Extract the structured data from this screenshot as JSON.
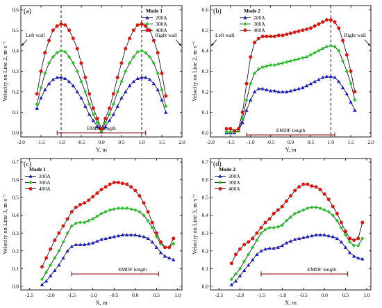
{
  "colors": {
    "s200": "#1a1ad6",
    "s300": "#22cc22",
    "s400": "#e3140c",
    "bracket": "#8b1a1a"
  },
  "chart_data": [
    {
      "panel": "(a)",
      "type": "line",
      "xlabel": "Y, m",
      "ylabel": "Velocity on Line 2, m·s⁻¹",
      "xlim": [
        -2.0,
        2.0
      ],
      "ylim": [
        -0.02,
        0.62
      ],
      "xticks": [
        -2.0,
        -1.5,
        -1.0,
        -0.5,
        0.0,
        0.5,
        1.0,
        1.5,
        2.0
      ],
      "yticks": [
        0.0,
        0.1,
        0.2,
        0.3,
        0.4,
        0.5,
        0.6
      ],
      "xtick_labels": [
        "-2.0",
        "-1.5",
        "-1.0",
        "-0.5",
        "0.0",
        "0.5",
        "1.0",
        "1.5",
        "2.0"
      ],
      "ytick_labels": [
        "0.0",
        "0.1",
        "0.2",
        "0.3",
        "0.4",
        "0.5",
        "0.6"
      ],
      "legend_title": "Mode 1",
      "legend_position": "top-right",
      "vlines": [
        -1.0,
        1.0
      ],
      "bracket": {
        "label": "EMDF length",
        "x0": -1.1,
        "x1": 1.1,
        "y": 0.0
      },
      "annotations": {
        "left": "Left wall",
        "right": "Right wall"
      },
      "series": [
        {
          "name": "200A",
          "x": [
            -1.6,
            -1.5,
            -1.4,
            -1.3,
            -1.2,
            -1.1,
            -1.0,
            -0.9,
            -0.8,
            -0.7,
            -0.6,
            -0.5,
            -0.4,
            -0.3,
            -0.2,
            -0.1,
            0.0,
            0.1,
            0.2,
            0.3,
            0.4,
            0.5,
            0.6,
            0.7,
            0.8,
            0.9,
            1.0,
            1.1,
            1.2,
            1.3,
            1.4,
            1.5,
            1.6
          ],
          "y": [
            0.12,
            0.17,
            0.21,
            0.24,
            0.26,
            0.27,
            0.27,
            0.265,
            0.25,
            0.23,
            0.2,
            0.17,
            0.13,
            0.09,
            0.06,
            0.03,
            0.005,
            0.03,
            0.06,
            0.09,
            0.13,
            0.17,
            0.2,
            0.23,
            0.25,
            0.265,
            0.27,
            0.27,
            0.26,
            0.24,
            0.21,
            0.16,
            0.1
          ]
        },
        {
          "name": "300A",
          "x": [
            -1.6,
            -1.5,
            -1.4,
            -1.3,
            -1.2,
            -1.1,
            -1.0,
            -0.9,
            -0.8,
            -0.7,
            -0.6,
            -0.5,
            -0.4,
            -0.3,
            -0.2,
            -0.1,
            0.0,
            0.1,
            0.2,
            0.3,
            0.4,
            0.5,
            0.6,
            0.7,
            0.8,
            0.9,
            1.0,
            1.1,
            1.2,
            1.3,
            1.4,
            1.5,
            1.6
          ],
          "y": [
            0.14,
            0.22,
            0.29,
            0.34,
            0.37,
            0.39,
            0.4,
            0.395,
            0.37,
            0.34,
            0.3,
            0.25,
            0.2,
            0.14,
            0.09,
            0.05,
            0.01,
            0.05,
            0.09,
            0.14,
            0.2,
            0.25,
            0.3,
            0.34,
            0.37,
            0.395,
            0.4,
            0.39,
            0.37,
            0.34,
            0.29,
            0.21,
            0.13
          ]
        },
        {
          "name": "400A",
          "x": [
            -1.6,
            -1.5,
            -1.4,
            -1.3,
            -1.2,
            -1.1,
            -1.0,
            -0.9,
            -0.8,
            -0.7,
            -0.6,
            -0.5,
            -0.4,
            -0.3,
            -0.2,
            -0.1,
            0.0,
            0.1,
            0.2,
            0.3,
            0.4,
            0.5,
            0.6,
            0.7,
            0.8,
            0.9,
            1.0,
            1.1,
            1.2,
            1.3,
            1.4,
            1.5,
            1.6
          ],
          "y": [
            0.19,
            0.3,
            0.39,
            0.45,
            0.5,
            0.52,
            0.53,
            0.525,
            0.5,
            0.46,
            0.41,
            0.34,
            0.27,
            0.19,
            0.12,
            0.07,
            0.02,
            0.07,
            0.12,
            0.19,
            0.27,
            0.34,
            0.41,
            0.46,
            0.5,
            0.525,
            0.53,
            0.52,
            0.5,
            0.45,
            0.39,
            0.29,
            0.18
          ]
        }
      ]
    },
    {
      "panel": "(b)",
      "type": "line",
      "xlabel": "Y, m",
      "ylabel": "Velocity on Line 2, m·s⁻¹",
      "xlim": [
        -2.0,
        2.0
      ],
      "ylim": [
        -0.02,
        0.62
      ],
      "xticks": [
        -2.0,
        -1.5,
        -1.0,
        -0.5,
        0.0,
        0.5,
        1.0,
        1.5,
        2.0
      ],
      "yticks": [
        0.0,
        0.1,
        0.2,
        0.3,
        0.4,
        0.5,
        0.6
      ],
      "xtick_labels": [
        "-2.0",
        "-1.5",
        "-1.0",
        "-0.5",
        "0.0",
        "0.5",
        "1.0",
        "1.5",
        "2.0"
      ],
      "ytick_labels": [
        "0.0",
        "0.1",
        "0.2",
        "0.3",
        "0.4",
        "0.5",
        "0.6"
      ],
      "legend_title": "Mode 2",
      "legend_position": "top-left",
      "vlines": [
        1.0
      ],
      "bracket": {
        "label": "EMDF length",
        "x0": -1.1,
        "x1": 1.1,
        "y": -0.01
      },
      "annotations": {
        "left": "Left wall",
        "right": "Right wall"
      },
      "series": [
        {
          "name": "200A",
          "x": [
            -1.6,
            -1.5,
            -1.4,
            -1.3,
            -1.2,
            -1.1,
            -1.0,
            -0.9,
            -0.8,
            -0.7,
            -0.6,
            -0.5,
            -0.4,
            -0.3,
            -0.2,
            -0.1,
            0.0,
            0.1,
            0.2,
            0.3,
            0.4,
            0.5,
            0.6,
            0.7,
            0.8,
            0.9,
            1.0,
            1.1,
            1.2,
            1.3,
            1.4,
            1.5,
            1.6
          ],
          "y": [
            0.0,
            0.0,
            0.0,
            0.01,
            0.05,
            0.11,
            0.16,
            0.2,
            0.215,
            0.215,
            0.21,
            0.205,
            0.205,
            0.2,
            0.2,
            0.2,
            0.205,
            0.21,
            0.215,
            0.22,
            0.23,
            0.24,
            0.25,
            0.26,
            0.27,
            0.275,
            0.275,
            0.27,
            0.25,
            0.22,
            0.19,
            0.15,
            0.11
          ]
        },
        {
          "name": "300A",
          "x": [
            -1.6,
            -1.5,
            -1.4,
            -1.3,
            -1.2,
            -1.1,
            -1.0,
            -0.9,
            -0.8,
            -0.7,
            -0.6,
            -0.5,
            -0.4,
            -0.3,
            -0.2,
            -0.1,
            0.0,
            0.1,
            0.2,
            0.3,
            0.4,
            0.5,
            0.6,
            0.7,
            0.8,
            0.9,
            1.0,
            1.1,
            1.2,
            1.3,
            1.4,
            1.5,
            1.6
          ],
          "y": [
            0.005,
            0.005,
            0.005,
            0.01,
            0.07,
            0.16,
            0.24,
            0.29,
            0.31,
            0.32,
            0.325,
            0.33,
            0.33,
            0.335,
            0.34,
            0.345,
            0.35,
            0.355,
            0.36,
            0.365,
            0.37,
            0.38,
            0.39,
            0.4,
            0.41,
            0.42,
            0.425,
            0.42,
            0.4,
            0.35,
            0.3,
            0.24,
            0.16
          ]
        },
        {
          "name": "400A",
          "x": [
            -1.6,
            -1.5,
            -1.4,
            -1.3,
            -1.2,
            -1.1,
            -1.0,
            -0.9,
            -0.8,
            -0.7,
            -0.6,
            -0.5,
            -0.4,
            -0.3,
            -0.2,
            -0.1,
            0.0,
            0.1,
            0.2,
            0.3,
            0.4,
            0.5,
            0.6,
            0.7,
            0.8,
            0.9,
            1.0,
            1.1,
            1.2,
            1.3,
            1.4,
            1.5,
            1.6
          ],
          "y": [
            0.02,
            0.02,
            0.01,
            0.02,
            0.1,
            0.24,
            0.37,
            0.44,
            0.46,
            0.47,
            0.47,
            0.47,
            0.47,
            0.475,
            0.475,
            0.48,
            0.485,
            0.49,
            0.495,
            0.5,
            0.505,
            0.51,
            0.52,
            0.53,
            0.54,
            0.55,
            0.55,
            0.54,
            0.51,
            0.45,
            0.38,
            0.3,
            0.2
          ]
        }
      ]
    },
    {
      "panel": "(c)",
      "type": "line",
      "xlabel": "X, m",
      "ylabel": "Velocity on Line 3, m·s⁻¹",
      "xlim": [
        -2.7,
        1.1
      ],
      "ylim": [
        -0.02,
        0.72
      ],
      "xticks": [
        -2.5,
        -2.0,
        -1.5,
        -1.0,
        -0.5,
        0.0,
        0.5,
        1.0
      ],
      "yticks": [
        0.0,
        0.1,
        0.2,
        0.3,
        0.4,
        0.5,
        0.6,
        0.7
      ],
      "xtick_labels": [
        "-2.5",
        "-2.0",
        "-1.5",
        "-1.0",
        "-0.5",
        "0.0",
        "0.5",
        "1.0"
      ],
      "ytick_labels": [
        "0.0",
        "0.1",
        "0.2",
        "0.3",
        "0.4",
        "0.5",
        "0.6",
        "0.7"
      ],
      "legend_title": "Mode 1",
      "legend_position": "top-left",
      "vlines": [],
      "bracket": {
        "label": "EMDF length",
        "x0": -1.5,
        "x1": 0.55,
        "y": 0.07
      },
      "annotations": {},
      "series": [
        {
          "name": "200A",
          "x": [
            -2.2,
            -2.1,
            -2.0,
            -1.9,
            -1.8,
            -1.7,
            -1.6,
            -1.5,
            -1.4,
            -1.3,
            -1.2,
            -1.1,
            -1.0,
            -0.9,
            -0.8,
            -0.7,
            -0.6,
            -0.5,
            -0.4,
            -0.3,
            -0.2,
            -0.1,
            0.0,
            0.1,
            0.2,
            0.3,
            0.4,
            0.5,
            0.6,
            0.7,
            0.8,
            0.9
          ],
          "y": [
            0.01,
            0.03,
            0.06,
            0.09,
            0.12,
            0.16,
            0.2,
            0.225,
            0.235,
            0.235,
            0.235,
            0.24,
            0.245,
            0.255,
            0.265,
            0.27,
            0.275,
            0.28,
            0.285,
            0.29,
            0.29,
            0.29,
            0.29,
            0.285,
            0.28,
            0.27,
            0.25,
            0.22,
            0.19,
            0.17,
            0.16,
            0.15
          ]
        },
        {
          "name": "300A",
          "x": [
            -2.2,
            -2.1,
            -2.0,
            -1.9,
            -1.8,
            -1.7,
            -1.6,
            -1.5,
            -1.4,
            -1.3,
            -1.2,
            -1.1,
            -1.0,
            -0.9,
            -0.8,
            -0.7,
            -0.6,
            -0.5,
            -0.4,
            -0.3,
            -0.2,
            -0.1,
            0.0,
            0.1,
            0.2,
            0.3,
            0.4,
            0.5,
            0.6,
            0.7,
            0.8,
            0.9
          ],
          "y": [
            0.04,
            0.08,
            0.12,
            0.16,
            0.2,
            0.25,
            0.3,
            0.34,
            0.355,
            0.36,
            0.36,
            0.37,
            0.38,
            0.395,
            0.41,
            0.42,
            0.43,
            0.435,
            0.44,
            0.44,
            0.44,
            0.435,
            0.43,
            0.42,
            0.4,
            0.37,
            0.33,
            0.28,
            0.24,
            0.22,
            0.22,
            0.24
          ]
        },
        {
          "name": "400A",
          "x": [
            -2.2,
            -2.1,
            -2.0,
            -1.9,
            -1.8,
            -1.7,
            -1.6,
            -1.5,
            -1.4,
            -1.3,
            -1.2,
            -1.1,
            -1.0,
            -0.9,
            -0.8,
            -0.7,
            -0.6,
            -0.5,
            -0.4,
            -0.3,
            -0.2,
            -0.1,
            0.0,
            0.1,
            0.2,
            0.3,
            0.4,
            0.5,
            0.6,
            0.7,
            0.8,
            0.9
          ],
          "y": [
            0.11,
            0.16,
            0.21,
            0.26,
            0.3,
            0.34,
            0.38,
            0.42,
            0.445,
            0.46,
            0.47,
            0.485,
            0.505,
            0.525,
            0.545,
            0.56,
            0.575,
            0.585,
            0.585,
            0.58,
            0.575,
            0.56,
            0.54,
            0.51,
            0.47,
            0.42,
            0.36,
            0.3,
            0.25,
            0.22,
            0.22,
            0.27
          ]
        }
      ]
    },
    {
      "panel": "(d)",
      "type": "line",
      "xlabel": "X, m",
      "ylabel": "Velocity on Line 3, m·s⁻¹",
      "xlim": [
        -2.7,
        1.1
      ],
      "ylim": [
        -0.02,
        0.72
      ],
      "xticks": [
        -2.5,
        -2.0,
        -1.5,
        -1.0,
        -0.5,
        0.0,
        0.5,
        1.0
      ],
      "yticks": [
        0.0,
        0.1,
        0.2,
        0.3,
        0.4,
        0.5,
        0.6,
        0.7
      ],
      "xtick_labels": [
        "-2.5",
        "-2.0",
        "-1.5",
        "-1.0",
        "-0.5",
        "0.0",
        "0.5",
        "1.0"
      ],
      "ytick_labels": [
        "0.0",
        "0.1",
        "0.2",
        "0.3",
        "0.4",
        "0.5",
        "0.6",
        "0.7"
      ],
      "legend_title": "Mode 2",
      "legend_position": "top-left",
      "vlines": [],
      "bracket": {
        "label": "EMDF length",
        "x0": -1.5,
        "x1": 0.55,
        "y": 0.07
      },
      "annotations": {},
      "series": [
        {
          "name": "200A",
          "x": [
            -2.2,
            -2.1,
            -2.0,
            -1.9,
            -1.8,
            -1.7,
            -1.6,
            -1.5,
            -1.4,
            -1.3,
            -1.2,
            -1.1,
            -1.0,
            -0.9,
            -0.8,
            -0.7,
            -0.6,
            -0.5,
            -0.4,
            -0.3,
            -0.2,
            -0.1,
            0.0,
            0.1,
            0.2,
            0.3,
            0.4,
            0.5,
            0.6,
            0.7,
            0.8,
            0.9
          ],
          "y": [
            0.01,
            0.03,
            0.06,
            0.09,
            0.12,
            0.15,
            0.18,
            0.2,
            0.21,
            0.215,
            0.215,
            0.22,
            0.23,
            0.245,
            0.255,
            0.265,
            0.27,
            0.275,
            0.28,
            0.285,
            0.29,
            0.29,
            0.29,
            0.285,
            0.28,
            0.27,
            0.25,
            0.22,
            0.19,
            0.17,
            0.16,
            0.155
          ]
        },
        {
          "name": "300A",
          "x": [
            -2.2,
            -2.1,
            -2.0,
            -1.9,
            -1.8,
            -1.7,
            -1.6,
            -1.5,
            -1.4,
            -1.3,
            -1.2,
            -1.1,
            -1.0,
            -0.9,
            -0.8,
            -0.7,
            -0.6,
            -0.5,
            -0.4,
            -0.3,
            -0.2,
            -0.1,
            0.0,
            0.1,
            0.2,
            0.3,
            0.4,
            0.5,
            0.6,
            0.7,
            0.8,
            0.9
          ],
          "y": [
            0.04,
            0.07,
            0.1,
            0.14,
            0.18,
            0.22,
            0.26,
            0.3,
            0.32,
            0.33,
            0.33,
            0.335,
            0.345,
            0.37,
            0.39,
            0.41,
            0.42,
            0.43,
            0.44,
            0.445,
            0.445,
            0.44,
            0.43,
            0.42,
            0.4,
            0.37,
            0.33,
            0.29,
            0.25,
            0.23,
            0.23,
            0.27
          ]
        },
        {
          "name": "400A",
          "x": [
            -2.2,
            -2.1,
            -2.0,
            -1.9,
            -1.8,
            -1.7,
            -1.6,
            -1.5,
            -1.4,
            -1.3,
            -1.2,
            -1.1,
            -1.0,
            -0.9,
            -0.8,
            -0.7,
            -0.6,
            -0.5,
            -0.4,
            -0.3,
            -0.2,
            -0.1,
            0.0,
            0.1,
            0.2,
            0.3,
            0.4,
            0.5,
            0.6,
            0.7,
            0.8,
            0.9
          ],
          "y": [
            0.13,
            0.18,
            0.21,
            0.235,
            0.25,
            0.27,
            0.3,
            0.33,
            0.36,
            0.38,
            0.41,
            0.43,
            0.45,
            0.48,
            0.51,
            0.54,
            0.56,
            0.575,
            0.575,
            0.565,
            0.56,
            0.545,
            0.52,
            0.49,
            0.45,
            0.41,
            0.36,
            0.31,
            0.27,
            0.26,
            0.27,
            0.36
          ]
        }
      ]
    }
  ]
}
